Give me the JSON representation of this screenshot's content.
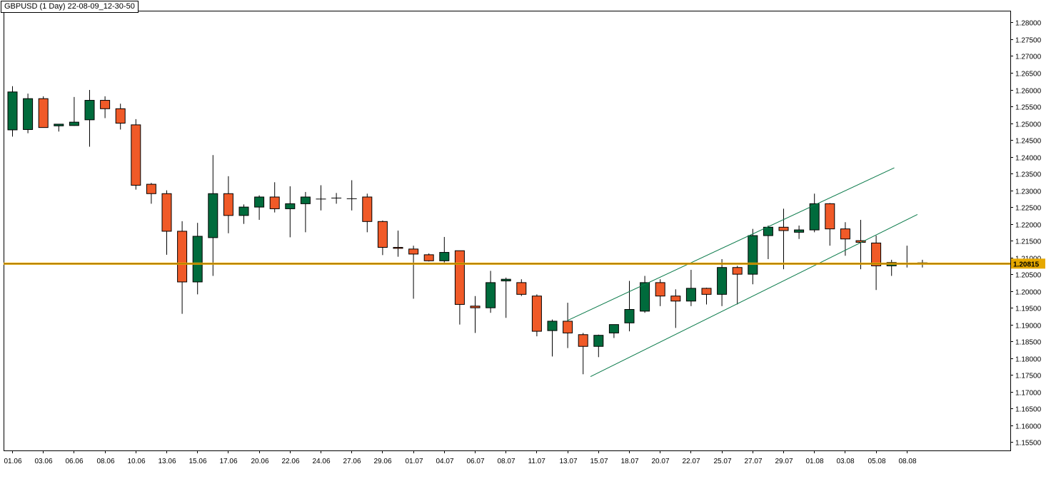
{
  "chart_data": {
    "type": "candlestick",
    "title": "GBPUSD (1 Day) 22-08-09_12-30-50",
    "y_range": [
      1.1525,
      1.2835
    ],
    "y_ticks": [
      "1.28000",
      "1.27500",
      "1.27000",
      "1.26500",
      "1.26000",
      "1.25500",
      "1.25000",
      "1.24500",
      "1.24000",
      "1.23500",
      "1.23000",
      "1.22500",
      "1.22000",
      "1.21500",
      "1.21000",
      "1.20500",
      "1.20000",
      "1.19500",
      "1.19000",
      "1.18500",
      "1.18000",
      "1.17500",
      "1.17000",
      "1.16500",
      "1.16000",
      "1.15500"
    ],
    "x_labels": [
      {
        "label": "01.06",
        "index": 0
      },
      {
        "label": "03.06",
        "index": 2
      },
      {
        "label": "06.06",
        "index": 4
      },
      {
        "label": "08.06",
        "index": 6
      },
      {
        "label": "10.06",
        "index": 8
      },
      {
        "label": "13.06",
        "index": 10
      },
      {
        "label": "15.06",
        "index": 12
      },
      {
        "label": "17.06",
        "index": 14
      },
      {
        "label": "20.06",
        "index": 16
      },
      {
        "label": "22.06",
        "index": 18
      },
      {
        "label": "24.06",
        "index": 20
      },
      {
        "label": "27.06",
        "index": 22
      },
      {
        "label": "29.06",
        "index": 24
      },
      {
        "label": "01.07",
        "index": 26
      },
      {
        "label": "04.07",
        "index": 28
      },
      {
        "label": "06.07",
        "index": 30
      },
      {
        "label": "08.07",
        "index": 32
      },
      {
        "label": "11.07",
        "index": 34
      },
      {
        "label": "13.07",
        "index": 36
      },
      {
        "label": "15.07",
        "index": 38
      },
      {
        "label": "18.07",
        "index": 40
      },
      {
        "label": "20.07",
        "index": 42
      },
      {
        "label": "22.07",
        "index": 44
      },
      {
        "label": "25.07",
        "index": 46
      },
      {
        "label": "27.07",
        "index": 48
      },
      {
        "label": "29.07",
        "index": 50
      },
      {
        "label": "01.08",
        "index": 52
      },
      {
        "label": "03.08",
        "index": 54
      },
      {
        "label": "05.08",
        "index": 56
      },
      {
        "label": "08.08",
        "index": 58
      }
    ],
    "candles": [
      [
        1.248,
        1.261,
        1.246,
        1.2593
      ],
      [
        1.2481,
        1.2588,
        1.247,
        1.2573
      ],
      [
        1.2573,
        1.258,
        1.2487,
        1.2487
      ],
      [
        1.2492,
        1.2497,
        1.2475,
        1.2497
      ],
      [
        1.2493,
        1.2578,
        1.2492,
        1.2503
      ],
      [
        1.251,
        1.2599,
        1.243,
        1.2568
      ],
      [
        1.2568,
        1.258,
        1.2515,
        1.2543
      ],
      [
        1.2543,
        1.2558,
        1.2481,
        1.25
      ],
      [
        1.2495,
        1.2512,
        1.2302,
        1.2315
      ],
      [
        1.2318,
        1.2322,
        1.226,
        1.229
      ],
      [
        1.229,
        1.23,
        1.2108,
        1.2178
      ],
      [
        1.2178,
        1.2208,
        1.1932,
        1.2027
      ],
      [
        1.2027,
        1.2203,
        1.199,
        1.2163
      ],
      [
        1.2159,
        1.2405,
        1.2045,
        1.229
      ],
      [
        1.229,
        1.2342,
        1.2172,
        1.2225
      ],
      [
        1.2225,
        1.2258,
        1.22,
        1.225
      ],
      [
        1.225,
        1.2285,
        1.2212,
        1.228
      ],
      [
        1.228,
        1.2324,
        1.2234,
        1.2245
      ],
      [
        1.2245,
        1.2312,
        1.216,
        1.226
      ],
      [
        1.226,
        1.2295,
        1.2175,
        1.228
      ],
      [
        1.2275,
        1.2315,
        1.224,
        1.2275
      ],
      [
        1.2278,
        1.2292,
        1.226,
        1.2278
      ],
      [
        1.2275,
        1.233,
        1.224,
        1.2276
      ],
      [
        1.228,
        1.229,
        1.2175,
        1.2207
      ],
      [
        1.2207,
        1.221,
        1.2107,
        1.213
      ],
      [
        1.213,
        1.218,
        1.2102,
        1.2127
      ],
      [
        1.2125,
        1.2135,
        1.1977,
        1.211
      ],
      [
        1.2108,
        1.2112,
        1.2088,
        1.209
      ],
      [
        1.209,
        1.2161,
        1.2085,
        1.2115
      ],
      [
        1.212,
        1.212,
        1.19,
        1.196
      ],
      [
        1.1955,
        1.1985,
        1.1875,
        1.195
      ],
      [
        1.195,
        1.206,
        1.1935,
        1.2025
      ],
      [
        1.203,
        1.204,
        1.192,
        1.2035
      ],
      [
        1.2025,
        1.2035,
        1.1985,
        1.199
      ],
      [
        1.1985,
        1.199,
        1.1865,
        1.188
      ],
      [
        1.1882,
        1.1915,
        1.1805,
        1.191
      ],
      [
        1.191,
        1.1965,
        1.183,
        1.1875
      ],
      [
        1.187,
        1.1875,
        1.1752,
        1.1835
      ],
      [
        1.1835,
        1.187,
        1.1803,
        1.1868
      ],
      [
        1.1875,
        1.19,
        1.186,
        1.19
      ],
      [
        1.1905,
        1.203,
        1.188,
        1.1945
      ],
      [
        1.194,
        1.2045,
        1.1935,
        1.2025
      ],
      [
        1.2025,
        1.2035,
        1.1955,
        1.1985
      ],
      [
        1.1985,
        1.2005,
        1.189,
        1.197
      ],
      [
        1.197,
        1.2063,
        1.1955,
        1.2008
      ],
      [
        1.2008,
        1.201,
        1.196,
        1.199
      ],
      [
        1.199,
        1.2095,
        1.1955,
        1.207
      ],
      [
        1.207,
        1.2075,
        1.196,
        1.205
      ],
      [
        1.205,
        1.2185,
        1.202,
        1.2165
      ],
      [
        1.2165,
        1.2195,
        1.2095,
        1.219
      ],
      [
        1.219,
        1.2245,
        1.2065,
        1.218
      ],
      [
        1.2175,
        1.2195,
        1.2155,
        1.2182
      ],
      [
        1.2182,
        1.229,
        1.2175,
        1.226
      ],
      [
        1.226,
        1.2262,
        1.2135,
        1.2185
      ],
      [
        1.2185,
        1.2205,
        1.2105,
        1.2155
      ],
      [
        1.215,
        1.2212,
        1.2065,
        1.2145
      ],
      [
        1.2143,
        1.2165,
        1.2003,
        1.2075
      ],
      [
        1.2075,
        1.2093,
        1.2045,
        1.2085
      ],
      [
        1.208,
        1.2135,
        1.207,
        1.2083
      ],
      [
        1.2084,
        1.2093,
        1.207,
        1.2081
      ]
    ],
    "colors": {
      "up": "#006b3c",
      "down": "#f05a28",
      "wick": "#000000",
      "price_line": "#e6a800",
      "channel": "#0a7a4a"
    },
    "current_price": {
      "value": 1.20815,
      "label": "1.20815"
    },
    "trend_lines": [
      {
        "name": "channel-upper",
        "from": {
          "index": 36,
          "price": 1.1912
        },
        "to": {
          "index": 57.2,
          "price": 1.2367
        }
      },
      {
        "name": "channel-lower",
        "from": {
          "index": 37.5,
          "price": 1.1745
        },
        "to": {
          "index": 58.7,
          "price": 1.2228
        }
      }
    ]
  }
}
